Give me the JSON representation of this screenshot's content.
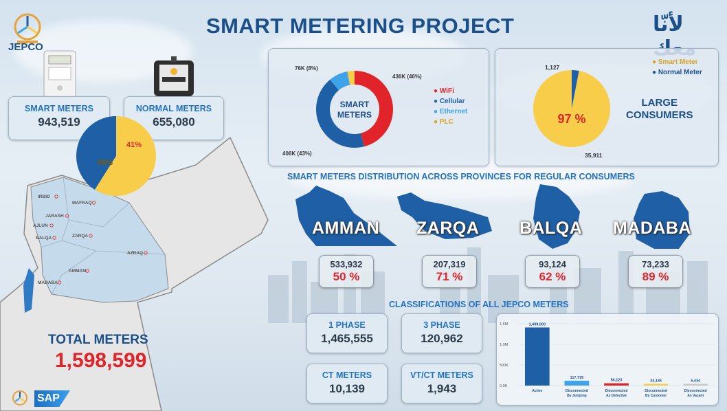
{
  "header": {
    "title": "SMART METERING PROJECT",
    "brand": "JEPCO",
    "arabic_logo": "لأنّا معك",
    "partner": "SAP"
  },
  "colors": {
    "blue": "#1e5fa6",
    "yellow": "#f7cd4a",
    "red": "#e0242a",
    "light_blue": "#3ea3e8",
    "title": "#1b4f8a"
  },
  "meters": {
    "smart": {
      "label": "SMART METERS",
      "value": "943,519"
    },
    "normal": {
      "label": "NORMAL METERS",
      "value": "655,080"
    },
    "pie_labels": {
      "smart_pct": "59%",
      "normal_pct": "41%"
    }
  },
  "map": {
    "cities": [
      "IRBID",
      "MAFRAQ",
      "JARASH",
      "AJLUN",
      "BALQA",
      "ZARQA",
      "AZRAQ",
      "AMMAN",
      "MADABA"
    ]
  },
  "total": {
    "label": "TOTAL METERS",
    "value": "1,598,599"
  },
  "smart_meters_donut": {
    "center_label_1": "SMART",
    "center_label_2": "METERS",
    "labels": {
      "wifi": "436K (46%)",
      "cellular": "406K (43%)",
      "ethernet": "76K (8%)"
    },
    "legend": [
      "WiFi",
      "Cellular",
      "Ethernet",
      "PLC"
    ]
  },
  "large_consumers": {
    "title_1": "LARGE",
    "title_2": "CONSUMERS",
    "pct_label": "97 %",
    "smart_count": "35,911",
    "normal_count": "1,127",
    "legend": [
      "Smart Meter",
      "Normal Meter"
    ]
  },
  "provinces": {
    "title": "SMART METERS DISTRIBUTION ACROSS PROVINCES FOR REGULAR CONSUMERS",
    "items": [
      {
        "name": "AMMAN",
        "value": "533,932",
        "pct": "50 %"
      },
      {
        "name": "ZARQA",
        "value": "207,319",
        "pct": "71 %"
      },
      {
        "name": "BALQA",
        "value": "93,124",
        "pct": "62 %"
      },
      {
        "name": "MADABA",
        "value": "73,233",
        "pct": "89 %"
      }
    ]
  },
  "classifications": {
    "title": "CLASSIFICATIONS OF ALL JEPCO METERS",
    "one_phase": {
      "label": "1 PHASE",
      "value": "1,465,555"
    },
    "three_phase": {
      "label": "3 PHASE",
      "value": "120,962"
    },
    "ct": {
      "label": "CT METERS",
      "value": "10,139"
    },
    "vtct": {
      "label": "VT/CT METERS",
      "value": "1,943"
    }
  },
  "chart_data": [
    {
      "type": "pie",
      "categories": [
        "Smart Meters",
        "Normal Meters"
      ],
      "values": [
        59,
        41
      ],
      "colors": [
        "#f7cd4a",
        "#1e5fa6"
      ]
    },
    {
      "type": "pie",
      "categories": [
        "WiFi",
        "Cellular",
        "Ethernet",
        "PLC"
      ],
      "values": [
        46,
        43,
        8,
        3
      ],
      "colors": [
        "#e0242a",
        "#1e5fa6",
        "#3ea3e8",
        "#f7cd4a"
      ],
      "donut": true
    },
    {
      "type": "pie",
      "categories": [
        "Smart Meter",
        "Normal Meter"
      ],
      "values": [
        35911,
        1127
      ],
      "colors": [
        "#f7cd4a",
        "#1e5fa6"
      ]
    },
    {
      "type": "bar",
      "categories": [
        "Active",
        "Disconnected By Jumping",
        "Disconnected As Defective",
        "Disconnected By Customer",
        "Disconnected As Vacant"
      ],
      "values": [
        1409000,
        117735,
        56123,
        34135,
        5434
      ],
      "value_labels": [
        "1,409,000",
        "117,735",
        "56,123",
        "34,135",
        "5,434"
      ],
      "colors": [
        "#1e5fa6",
        "#3ea3e8",
        "#e0242a",
        "#f7cd4a",
        "#c9c9c9"
      ],
      "yticks": [
        "1,5M",
        "1,0M",
        "500K",
        "0,0K"
      ],
      "ylim": [
        0,
        1500000
      ]
    }
  ]
}
